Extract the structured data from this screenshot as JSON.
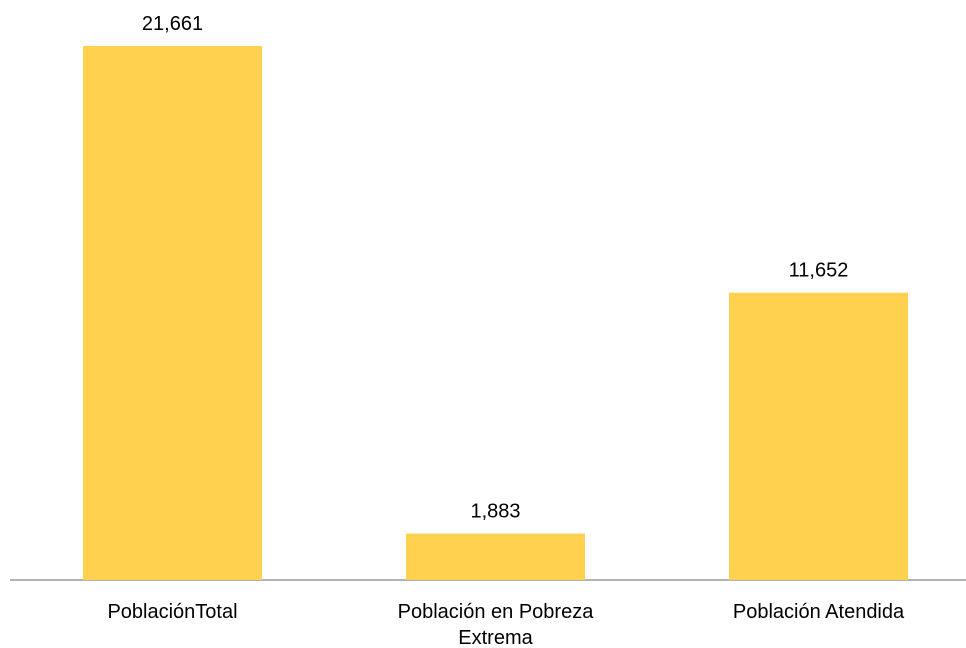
{
  "chart_data": {
    "type": "bar",
    "categories": [
      "PoblaciónTotal",
      "Población en Pobreza Extrema",
      "Población Atendida"
    ],
    "values": [
      21661,
      1883,
      11652
    ],
    "value_labels": [
      "21,661",
      "1,883",
      "11,652"
    ],
    "color": "#ffd14f"
  }
}
